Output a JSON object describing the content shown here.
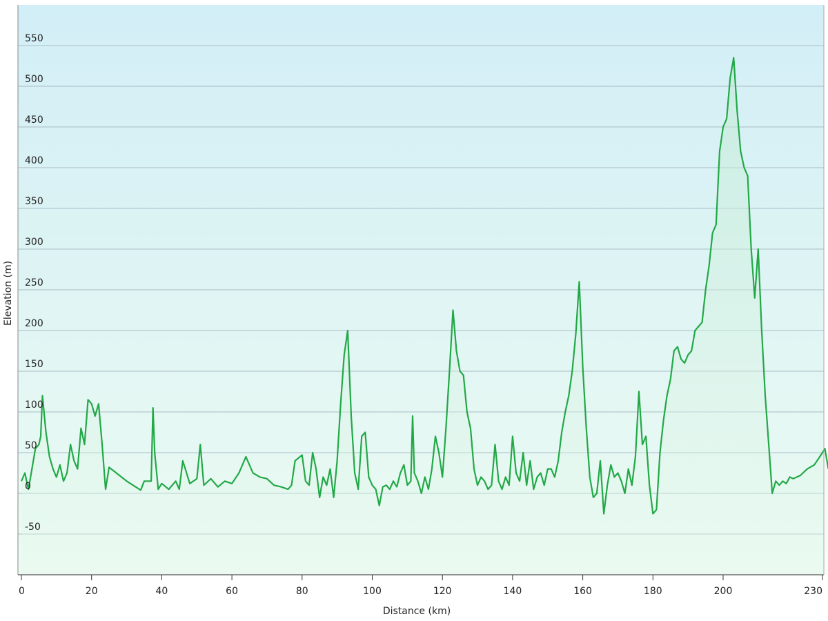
{
  "chart_data": {
    "type": "area",
    "xlabel": "Distance  (km)",
    "ylabel": "Elevation (m)",
    "xlim": [
      0,
      230
    ],
    "ylim": [
      -100,
      600
    ],
    "x_ticks": [
      "0",
      "20",
      "40",
      "60",
      "80",
      "100",
      "120",
      "140",
      "160",
      "180",
      "200",
      "230"
    ],
    "y_ticks": [
      "550",
      "500",
      "450",
      "400",
      "350",
      "300",
      "250",
      "200",
      "150",
      "100",
      "50",
      "0",
      "-50"
    ],
    "grid": "horizontal",
    "legend": "none",
    "colors": {
      "line": "#22a847",
      "fill_top": "#d2eef6",
      "fill_bottom": "#ecfbf2"
    },
    "series": [
      {
        "x": [
          0,
          1,
          2,
          3,
          4,
          5,
          5.5,
          6,
          7,
          8,
          9,
          10,
          11,
          12,
          13,
          14,
          15,
          16,
          17,
          18,
          19,
          20,
          21,
          22,
          23,
          24,
          25,
          30,
          34,
          35,
          37,
          37.5,
          38,
          39,
          40,
          42,
          44,
          45,
          46,
          48,
          50,
          51,
          52,
          54,
          56,
          58,
          60,
          62,
          64,
          66,
          68,
          70,
          72,
          74,
          76,
          77,
          78,
          80,
          81,
          82,
          83,
          84,
          85,
          86,
          87,
          88,
          89,
          90,
          91,
          92,
          93,
          94,
          95,
          96,
          97,
          98,
          99,
          100,
          101,
          102,
          103,
          104,
          105,
          106,
          107,
          108,
          109,
          110,
          111,
          111.5,
          112,
          113,
          114,
          115,
          116,
          117,
          118,
          119,
          120,
          121,
          122,
          123,
          124,
          125,
          126,
          127,
          128,
          129,
          130,
          131,
          132,
          133,
          134,
          135,
          136,
          137,
          138,
          139,
          140,
          141,
          142,
          143,
          144,
          145,
          146,
          147,
          148,
          149,
          150,
          151,
          152,
          153,
          154,
          155,
          156,
          157,
          158,
          159,
          160,
          161,
          162,
          163,
          164,
          165,
          166,
          167,
          168,
          169,
          170,
          171,
          172,
          173,
          174,
          175,
          176,
          177,
          178,
          179,
          180,
          181,
          182,
          183,
          184,
          185,
          186,
          187,
          188,
          189,
          190,
          191,
          192,
          193,
          194,
          195,
          196,
          197,
          198,
          199,
          200,
          201,
          202,
          203,
          204,
          205,
          206,
          207,
          208,
          209,
          210,
          211,
          212,
          213,
          214,
          215,
          216,
          217,
          218,
          219,
          220,
          222,
          224,
          226,
          228,
          229,
          230
        ],
        "values": [
          15,
          25,
          5,
          30,
          55,
          60,
          70,
          120,
          75,
          45,
          30,
          20,
          35,
          15,
          25,
          60,
          40,
          30,
          80,
          60,
          115,
          110,
          95,
          110,
          60,
          5,
          32,
          15,
          4,
          15,
          15,
          105,
          50,
          5,
          12,
          5,
          15,
          5,
          40,
          12,
          18,
          60,
          10,
          18,
          8,
          15,
          12,
          25,
          45,
          25,
          20,
          18,
          10,
          8,
          5,
          10,
          40,
          47,
          15,
          10,
          50,
          30,
          -5,
          20,
          10,
          30,
          -5,
          40,
          110,
          170,
          200,
          95,
          25,
          5,
          70,
          75,
          20,
          10,
          5,
          -15,
          8,
          10,
          5,
          15,
          8,
          25,
          35,
          10,
          15,
          95,
          25,
          15,
          0,
          20,
          5,
          30,
          70,
          50,
          20,
          80,
          150,
          225,
          175,
          150,
          145,
          100,
          80,
          30,
          10,
          20,
          15,
          5,
          10,
          60,
          15,
          5,
          20,
          10,
          70,
          25,
          15,
          50,
          10,
          40,
          5,
          20,
          25,
          10,
          30,
          30,
          20,
          40,
          75,
          100,
          120,
          150,
          195,
          260,
          155,
          80,
          20,
          -5,
          0,
          40,
          -25,
          10,
          35,
          20,
          25,
          15,
          0,
          30,
          10,
          45,
          125,
          60,
          70,
          10,
          -25,
          -20,
          50,
          90,
          120,
          140,
          175,
          180,
          165,
          160,
          170,
          175,
          200,
          205,
          210,
          250,
          280,
          320,
          330,
          420,
          450,
          460,
          510,
          535,
          470,
          420,
          400,
          390,
          300,
          240,
          300,
          200,
          120,
          60,
          0,
          15,
          10,
          15,
          12,
          20,
          18,
          22,
          30,
          35,
          48,
          55,
          30
        ]
      }
    ]
  }
}
